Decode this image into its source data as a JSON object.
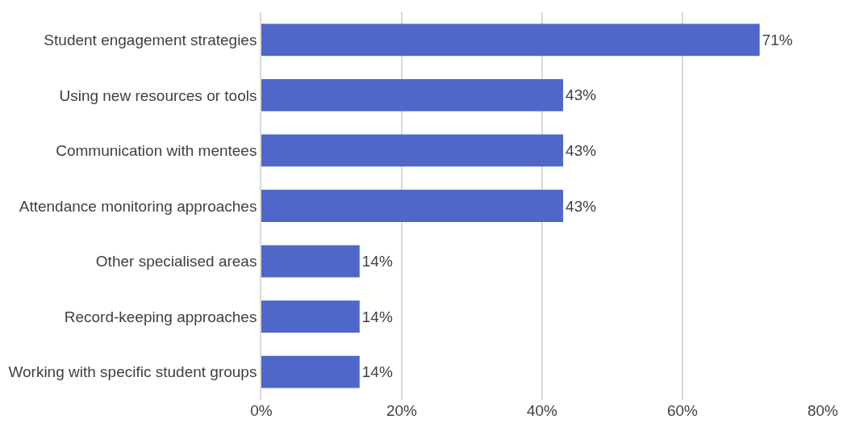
{
  "chart_data": {
    "type": "bar",
    "orientation": "horizontal",
    "categories": [
      "Student engagement strategies",
      "Using new resources or tools",
      "Communication with mentees",
      "Attendance monitoring approaches",
      "Other specialised areas",
      "Record-keeping approaches",
      "Working with specific student groups"
    ],
    "values": [
      71,
      43,
      43,
      43,
      14,
      14,
      14
    ],
    "value_labels": [
      "71%",
      "43%",
      "43%",
      "43%",
      "14%",
      "14%",
      "14%"
    ],
    "color": "#4f67c9",
    "xlim": [
      0,
      80
    ],
    "xticks": [
      {
        "value": 0,
        "label": "0%"
      },
      {
        "value": 20,
        "label": "20%"
      },
      {
        "value": 40,
        "label": "40%"
      },
      {
        "value": 60,
        "label": "60%"
      },
      {
        "value": 80,
        "label": "80%"
      }
    ],
    "grid": "x"
  }
}
